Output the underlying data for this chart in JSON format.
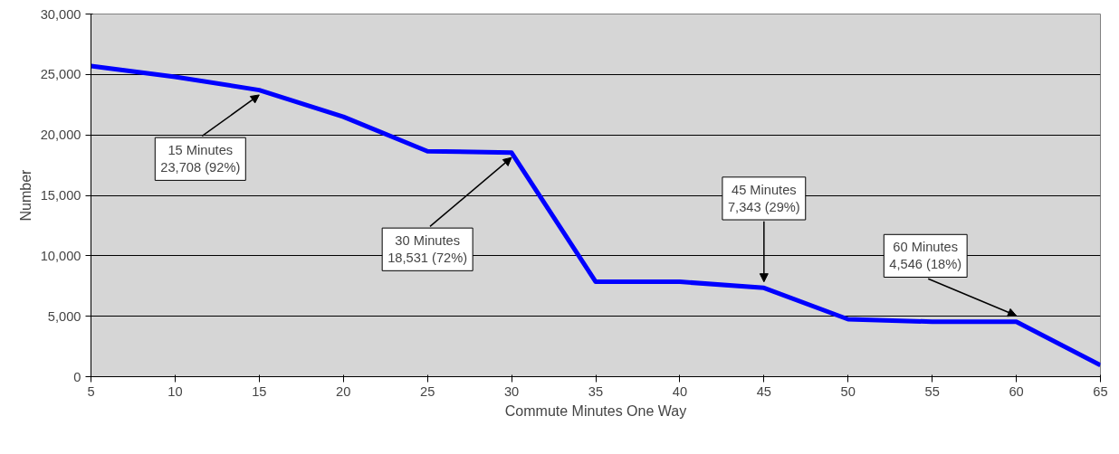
{
  "chart_data": {
    "type": "line",
    "xlabel": "Commute Minutes One Way",
    "ylabel": "Number",
    "x": [
      5,
      10,
      15,
      20,
      25,
      30,
      35,
      40,
      45,
      50,
      55,
      60,
      65
    ],
    "series": [
      {
        "color": "#0000ff",
        "values": [
          25700,
          24800,
          23708,
          21500,
          18650,
          18531,
          7850,
          7850,
          7343,
          4750,
          4546,
          4546,
          950
        ]
      }
    ],
    "xlim": [
      5,
      65
    ],
    "xticks": [
      5,
      10,
      15,
      20,
      25,
      30,
      35,
      40,
      45,
      50,
      55,
      60,
      65
    ],
    "ylim": [
      0,
      30000
    ],
    "yticks": [
      {
        "value": 0,
        "label": "0"
      },
      {
        "value": 5000,
        "label": "5,000"
      },
      {
        "value": 10000,
        "label": "10,000"
      },
      {
        "value": 15000,
        "label": "15,000"
      },
      {
        "value": 20000,
        "label": "20,000"
      },
      {
        "value": 25000,
        "label": "25,000"
      },
      {
        "value": 30000,
        "label": "30,000"
      }
    ],
    "grid": "y",
    "marker": "none",
    "line_style": "solid",
    "annotations": [
      {
        "text": "15 Minutes\n23,708 (92%)",
        "x": 15,
        "y": 23708
      },
      {
        "text": "30 Minutes\n18,531 (72%)",
        "x": 30,
        "y": 18531
      },
      {
        "text": "45 Minutes\n7,343 (29%)",
        "x": 45,
        "y": 7343
      },
      {
        "text": "60 Minutes\n4,546 (18%)",
        "x": 60,
        "y": 4546
      }
    ]
  }
}
